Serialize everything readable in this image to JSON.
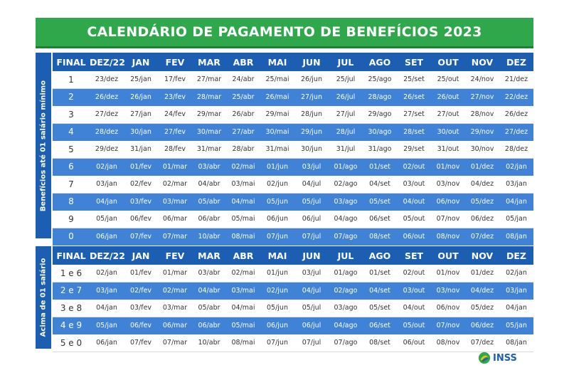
{
  "title": "CALENDÁRIO DE PAGAMENTO DE BENEFÍCIOS 2023",
  "headers": [
    "FINAL",
    "DEZ/22",
    "JAN",
    "FEV",
    "MAR",
    "ABR",
    "MAI",
    "JUN",
    "JUL",
    "AGO",
    "SET",
    "OUT",
    "NOV",
    "DEZ"
  ],
  "minimo": {
    "side_label": "Benefícios até 01 salário mínimo",
    "rows": [
      [
        "1",
        "23/dez",
        "25/jan",
        "17/fev",
        "27/mar",
        "24/abr",
        "25/mai",
        "26/jun",
        "25/jul",
        "25/ago",
        "25/set",
        "25/out",
        "24/nov",
        "21/dez"
      ],
      [
        "2",
        "26/dez",
        "26/jan",
        "23/fev",
        "28/mar",
        "25/abr",
        "26/mai",
        "27/jun",
        "26/jul",
        "28/ago",
        "26/set",
        "26/out",
        "27/nov",
        "22/dez"
      ],
      [
        "3",
        "27/dez",
        "27/jan",
        "24/fev",
        "29/mar",
        "26/abr",
        "29/mai",
        "28/jun",
        "27/jul",
        "29/ago",
        "27/set",
        "27/out",
        "28/nov",
        "26/dez"
      ],
      [
        "4",
        "28/dez",
        "30/jan",
        "27/fev",
        "30/mar",
        "27/abr",
        "30/mai",
        "29/jun",
        "28/jul",
        "30/ago",
        "28/set",
        "30/out",
        "29/nov",
        "27/dez"
      ],
      [
        "5",
        "29/dez",
        "31/jan",
        "28/fev",
        "31/mar",
        "28/abr",
        "31/mai",
        "30/jun",
        "31/jul",
        "31/ago",
        "29/set",
        "31/out",
        "30/nov",
        "28/dez"
      ],
      [
        "6",
        "02/jan",
        "01/fev",
        "01/mar",
        "03/abr",
        "02/mai",
        "01/jun",
        "03/jul",
        "01/ago",
        "01/set",
        "02/out",
        "01/nov",
        "01/dez",
        "02/jan"
      ],
      [
        "7",
        "03/jan",
        "02/fev",
        "02/mar",
        "04/abr",
        "03/mai",
        "02/jun",
        "04/jul",
        "02/ago",
        "04/set",
        "03/out",
        "03/nov",
        "04/dez",
        "03/jan"
      ],
      [
        "8",
        "04/jan",
        "03/fev",
        "03/mar",
        "05/abr",
        "04/mai",
        "05/jun",
        "05/jul",
        "03/ago",
        "05/set",
        "04/out",
        "06/nov",
        "05/dez",
        "04/jan"
      ],
      [
        "9",
        "05/jan",
        "06/fev",
        "06/mar",
        "06/abr",
        "05/mai",
        "06/jun",
        "06/jul",
        "04/ago",
        "06/set",
        "05/out",
        "07/nov",
        "06/dez",
        "05/jan"
      ],
      [
        "0",
        "06/jan",
        "07/fev",
        "07/mar",
        "10/abr",
        "08/mai",
        "07/jun",
        "07/jul",
        "07/ago",
        "08/set",
        "06/out",
        "08/nov",
        "07/dez",
        "08/jan"
      ]
    ]
  },
  "acima": {
    "side_label": "Acima de 01 salário",
    "rows": [
      [
        "1 e 6",
        "02/jan",
        "01/fev",
        "01/mar",
        "03/abr",
        "02/mai",
        "01/jun",
        "03/jul",
        "01/ago",
        "01/set",
        "02/out",
        "01/nov",
        "01/dez",
        "02/jan"
      ],
      [
        "2 e 7",
        "03/jan",
        "02/fev",
        "02/mar",
        "04/abr",
        "03/mai",
        "02/jun",
        "04/jul",
        "02/ago",
        "04/set",
        "03/out",
        "03/nov",
        "04/dez",
        "03/jan"
      ],
      [
        "3 e 8",
        "04/jan",
        "03/fev",
        "03/mar",
        "05/abr",
        "04/mai",
        "05/jun",
        "05/jul",
        "03/ago",
        "05/set",
        "04/out",
        "06/nov",
        "05/dez",
        "04/jan"
      ],
      [
        "4 e 9",
        "05/jan",
        "06/fev",
        "06/mar",
        "06/abr",
        "05/mai",
        "06/jun",
        "06/jul",
        "04/ago",
        "06/set",
        "05/out",
        "07/nov",
        "06/dez",
        "05/jan"
      ],
      [
        "5 e 0",
        "06/jan",
        "07/fev",
        "07/mar",
        "10/abr",
        "08/mai",
        "07/jun",
        "07/jul",
        "07/ago",
        "08/set",
        "06/out",
        "08/nov",
        "07/dez",
        "08/jan"
      ]
    ]
  },
  "logo_text": "INSS",
  "colors": {
    "green": "#2ea84a",
    "header_blue": "#1c5fb2",
    "row_blue": "#3f82d6"
  }
}
